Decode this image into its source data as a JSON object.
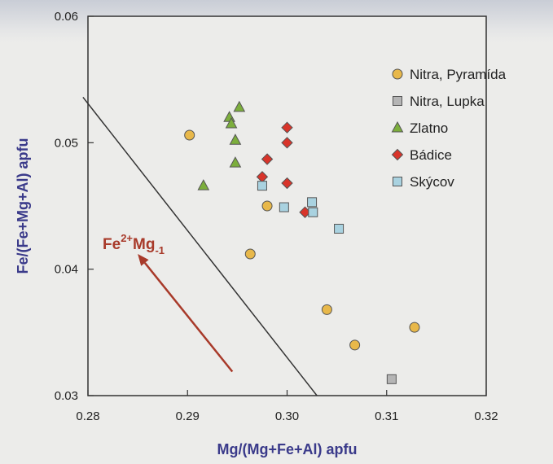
{
  "colors": {
    "nitra_pyramida": "#e8b84a",
    "nitra_lupka": "#b5b5b5",
    "zlatno": "#7cae3c",
    "badice": "#d8342a",
    "skycov": "#a9d2e0",
    "arrow": "#a83a2a",
    "axis_title": "#3a3a8a"
  },
  "chart_data": {
    "type": "scatter",
    "xlabel": "Mg/(Mg+Fe+Al) apfu",
    "ylabel": "Fe/(Fe+Mg+Al) apfu",
    "xlim": [
      0.28,
      0.32
    ],
    "ylim": [
      0.03,
      0.06
    ],
    "x_ticks": [
      "0.28",
      "0.29",
      "0.30",
      "0.31",
      "0.32"
    ],
    "y_ticks": [
      "0.03",
      "0.04",
      "0.05",
      "0.06"
    ],
    "legend_position": "top-right",
    "grid": false,
    "series": [
      {
        "name": "Nitra, Pyramída",
        "marker": "circle",
        "points": [
          [
            0.2902,
            0.0506
          ],
          [
            0.298,
            0.045
          ],
          [
            0.2963,
            0.0412
          ],
          [
            0.304,
            0.0368
          ],
          [
            0.3068,
            0.034
          ],
          [
            0.3128,
            0.0354
          ]
        ]
      },
      {
        "name": "Nitra, Lupka",
        "marker": "square",
        "points": [
          [
            0.3105,
            0.0313
          ]
        ]
      },
      {
        "name": "Zlatno",
        "marker": "triangle",
        "points": [
          [
            0.2916,
            0.0466
          ],
          [
            0.2942,
            0.052
          ],
          [
            0.2944,
            0.0515
          ],
          [
            0.2952,
            0.0528
          ],
          [
            0.2948,
            0.0502
          ],
          [
            0.2948,
            0.0484
          ]
        ]
      },
      {
        "name": "Bádice",
        "marker": "diamond",
        "points": [
          [
            0.3,
            0.0512
          ],
          [
            0.3,
            0.05
          ],
          [
            0.298,
            0.0487
          ],
          [
            0.2975,
            0.0473
          ],
          [
            0.3,
            0.0468
          ],
          [
            0.3018,
            0.0445
          ]
        ]
      },
      {
        "name": "Skýcov",
        "marker": "square",
        "points": [
          [
            0.2975,
            0.0466
          ],
          [
            0.2997,
            0.0449
          ],
          [
            0.3025,
            0.0453
          ],
          [
            0.3026,
            0.0445
          ],
          [
            0.3052,
            0.0432
          ]
        ]
      }
    ],
    "annotations": [
      {
        "text_main": "Fe",
        "sup": "2+",
        "text_mid": "Mg",
        "sub": "-1"
      }
    ],
    "reference_line": [
      [
        0.2795,
        0.0536
      ],
      [
        0.303,
        0.03
      ]
    ],
    "arrow": {
      "from": [
        0.2945,
        0.0319
      ],
      "to": [
        0.285,
        0.0412
      ]
    }
  }
}
